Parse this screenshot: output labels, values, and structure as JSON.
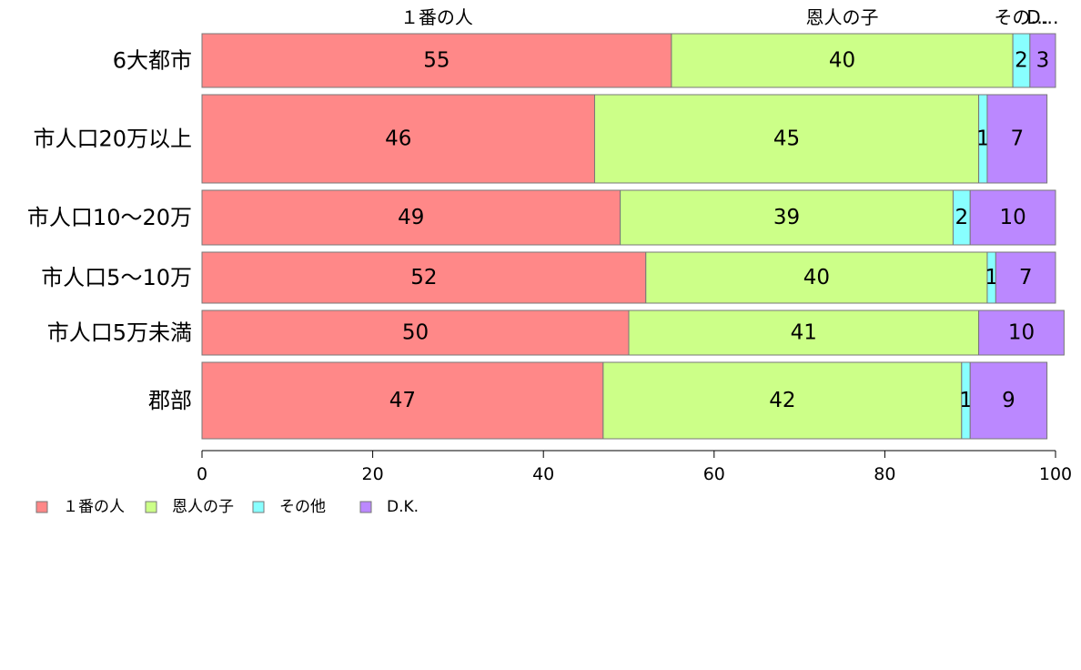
{
  "chart_data": {
    "type": "bar",
    "orientation": "horizontal",
    "stacked": true,
    "categories": [
      "6大都市",
      "市人口20万以上",
      "市人口10〜20万",
      "市人口5〜10万",
      "市人口5万未満",
      "郡部"
    ],
    "series": [
      {
        "name": "１番の人",
        "color": "#FF8888",
        "values": [
          55,
          46,
          49,
          52,
          50,
          47
        ]
      },
      {
        "name": "恩人の子",
        "color": "#CCFF88",
        "values": [
          40,
          45,
          39,
          40,
          41,
          42
        ]
      },
      {
        "name": "その他",
        "color": "#88FFFF",
        "values": [
          2,
          1,
          2,
          1,
          0,
          1
        ]
      },
      {
        "name": "D.K.",
        "color": "#BB88FF",
        "values": [
          3,
          7,
          10,
          7,
          10,
          9
        ]
      }
    ],
    "top_labels": [
      "１番の人",
      "恩人の子",
      "その…",
      "D…"
    ],
    "xlim": [
      0,
      100
    ],
    "xticks": [
      "0",
      "20",
      "40",
      "60",
      "80",
      "100"
    ],
    "legend_position": "bottom-left",
    "grid": false
  }
}
